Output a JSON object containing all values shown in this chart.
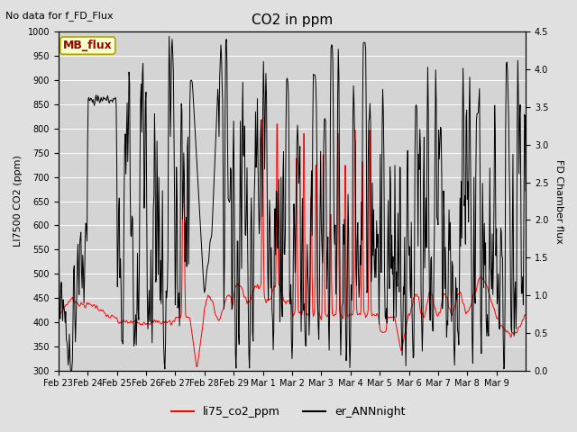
{
  "title": "CO2 in ppm",
  "top_left_text": "No data for f_FD_Flux",
  "ylabel_left": "LI7500 CO2 (ppm)",
  "ylabel_right": "FD Chamber flux",
  "ylim_left": [
    300,
    1000
  ],
  "ylim_right": [
    0.0,
    4.5
  ],
  "yticks_left": [
    300,
    350,
    400,
    450,
    500,
    550,
    600,
    650,
    700,
    750,
    800,
    850,
    900,
    950,
    1000
  ],
  "yticks_right": [
    0.0,
    0.5,
    1.0,
    1.5,
    2.0,
    2.5,
    3.0,
    3.5,
    4.0,
    4.5
  ],
  "legend_labels": [
    "li75_co2_ppm",
    "er_ANNnight"
  ],
  "legend_colors": [
    "red",
    "black"
  ],
  "annotation_box": "MB_flux",
  "annotation_box_color": "#ffffcc",
  "annotation_box_text_color": "#990000",
  "fig_facecolor": "#e0e0e0",
  "ax_facecolor": "#d4d4d4",
  "grid_color": "white"
}
